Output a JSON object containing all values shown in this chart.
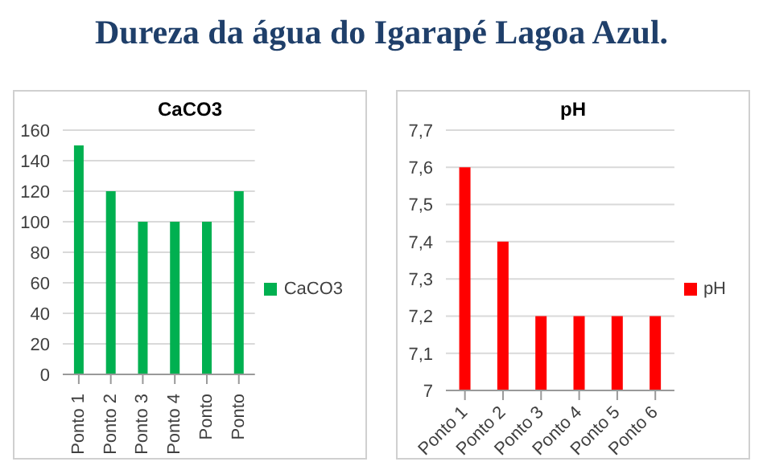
{
  "chart_data": [
    {
      "type": "other",
      "title": "Dureza da água do Igarapé Lagoa Azul."
    },
    {
      "type": "bar",
      "title": "CaCO3",
      "categories": [
        "Ponto 1",
        "Ponto 2",
        "Ponto 3",
        "Ponto 4",
        "Ponto",
        "Ponto"
      ],
      "series": [
        {
          "name": "CaCO3",
          "color": "#00b050",
          "values": [
            150,
            120,
            100,
            100,
            100,
            120
          ]
        }
      ],
      "ylim": [
        0,
        160
      ],
      "yticks": [
        0,
        20,
        40,
        60,
        80,
        100,
        120,
        140,
        160
      ],
      "grid": "y",
      "legend": "right"
    },
    {
      "type": "bar",
      "title": "pH",
      "categories": [
        "Ponto 1",
        "Ponto 2",
        "Ponto 3",
        "Ponto 4",
        "Ponto 5",
        "Ponto 6"
      ],
      "series": [
        {
          "name": "pH",
          "color": "#ff0000",
          "values": [
            7.6,
            7.4,
            7.2,
            7.2,
            7.2,
            7.2
          ]
        }
      ],
      "ylim": [
        7,
        7.7
      ],
      "yticks": [
        7,
        {
          "value": 7.1,
          "label": "7,1"
        },
        {
          "value": 7.2,
          "label": "7,2"
        },
        {
          "value": 7.3,
          "label": "7,3"
        },
        {
          "value": 7.4,
          "label": "7,4"
        },
        {
          "value": 7.5,
          "label": "7,5"
        },
        {
          "value": 7.6,
          "label": "7,6"
        },
        {
          "value": 7.7,
          "label": "7,7"
        }
      ],
      "grid": "y",
      "legend": "right"
    }
  ]
}
